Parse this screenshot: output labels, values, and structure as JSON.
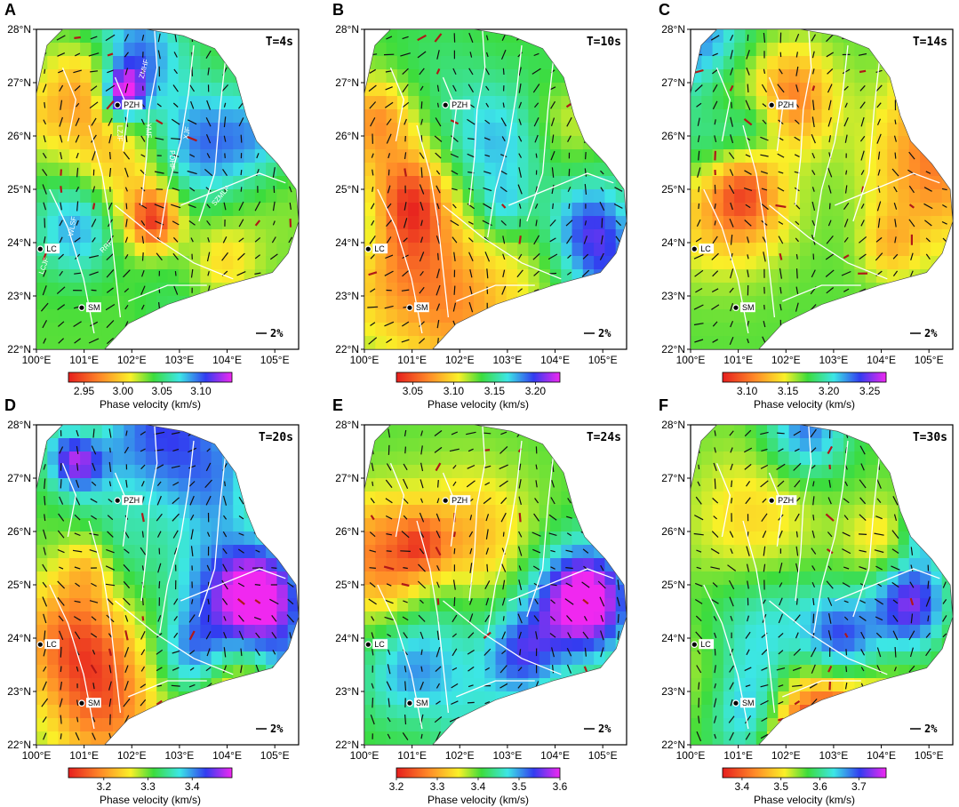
{
  "figure": {
    "axis_ticks": {
      "lon": [
        "100°E",
        "101°E",
        "102°E",
        "103°E",
        "104°E",
        "105°E"
      ],
      "lat": [
        "22°N",
        "23°N",
        "24°N",
        "25°N",
        "26°N",
        "27°N",
        "28°N"
      ]
    },
    "scale_label": "2%",
    "colorbar_label": "Phase velocity (km/s)",
    "cities": [
      {
        "label": "PZH",
        "lon": 101.7,
        "lat": 26.58
      },
      {
        "label": "LC",
        "lon": 100.08,
        "lat": 23.88
      },
      {
        "label": "SM",
        "lon": 100.95,
        "lat": 22.78
      }
    ],
    "fault_labels": [
      {
        "label": "ZMHF",
        "lon": 102.3,
        "lat": 27.25,
        "rot": -75
      },
      {
        "label": "LZJF",
        "lon": 101.7,
        "lat": 26.05,
        "rot": 90
      },
      {
        "label": "YMF",
        "lon": 102.3,
        "lat": 26.1,
        "rot": 90
      },
      {
        "label": "XJF",
        "lon": 103.2,
        "lat": 26.05,
        "rot": -80
      },
      {
        "label": "PDHF",
        "lon": 102.8,
        "lat": 25.55,
        "rot": 90
      },
      {
        "label": "SZMLF",
        "lon": 103.9,
        "lat": 24.85,
        "rot": -50
      },
      {
        "label": "WLSF",
        "lon": 100.8,
        "lat": 24.3,
        "rot": -80
      },
      {
        "label": "RRF",
        "lon": 101.5,
        "lat": 23.9,
        "rot": -45
      },
      {
        "label": "LCJF",
        "lon": 100.2,
        "lat": 23.55,
        "rot": -70
      }
    ],
    "panels": [
      {
        "letter": "A",
        "period": "T=4s",
        "ticks": [
          "2.95",
          "3.00",
          "3.05",
          "3.10"
        ],
        "vmin": 2.93,
        "vmax": 3.14,
        "show_fault_labels": true
      },
      {
        "letter": "B",
        "period": "T=10s",
        "ticks": [
          "3.05",
          "3.10",
          "3.15",
          "3.20"
        ],
        "vmin": 3.03,
        "vmax": 3.23,
        "show_fault_labels": false
      },
      {
        "letter": "C",
        "period": "T=14s",
        "ticks": [
          "3.10",
          "3.15",
          "3.20",
          "3.25"
        ],
        "vmin": 3.07,
        "vmax": 3.27,
        "show_fault_labels": false
      },
      {
        "letter": "D",
        "period": "T=20s",
        "ticks": [
          "3.2",
          "3.3",
          "3.4"
        ],
        "vmin": 3.12,
        "vmax": 3.49,
        "show_fault_labels": false
      },
      {
        "letter": "E",
        "period": "T=24s",
        "ticks": [
          "3.2",
          "3.3",
          "3.4",
          "3.5",
          "3.6"
        ],
        "vmin": 3.2,
        "vmax": 3.6,
        "show_fault_labels": false
      },
      {
        "letter": "F",
        "period": "T=30s",
        "ticks": [
          "3.4",
          "3.5",
          "3.6",
          "3.7"
        ],
        "vmin": 3.35,
        "vmax": 3.77,
        "show_fault_labels": false
      }
    ]
  }
}
